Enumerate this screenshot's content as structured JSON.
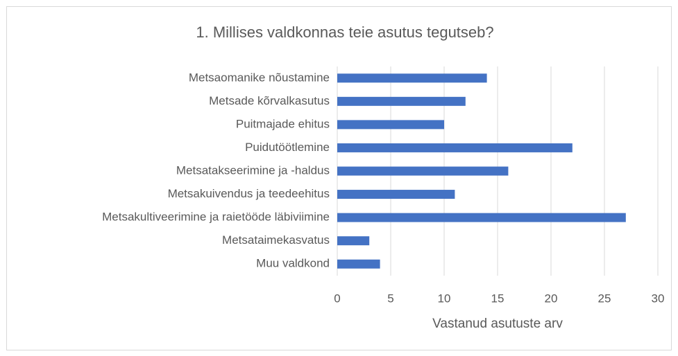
{
  "chart_data": {
    "type": "bar",
    "orientation": "horizontal",
    "title": "1. Millises valdkonnas teie asutus tegutseb?",
    "x_label": "Vastanud asutuste arv",
    "categories": [
      "Metsaomanike nõustamine",
      "Metsade kõrvalkasutus",
      "Puitmajade ehitus",
      "Puidutöötlemine",
      "Metsatakseerimine ja -haldus",
      "Metsakuivendus ja teedeehitus",
      "Metsakultiveerimine ja raietööde läbiviimine",
      "Metsataimekasvatus",
      "Muu valdkond"
    ],
    "values": [
      14,
      12,
      10,
      22,
      16,
      11,
      27,
      3,
      4
    ],
    "color": "#4472c4",
    "xlim": [
      0,
      30
    ],
    "xticks": [
      0,
      5,
      10,
      15,
      20,
      25,
      30
    ],
    "grid": true
  }
}
